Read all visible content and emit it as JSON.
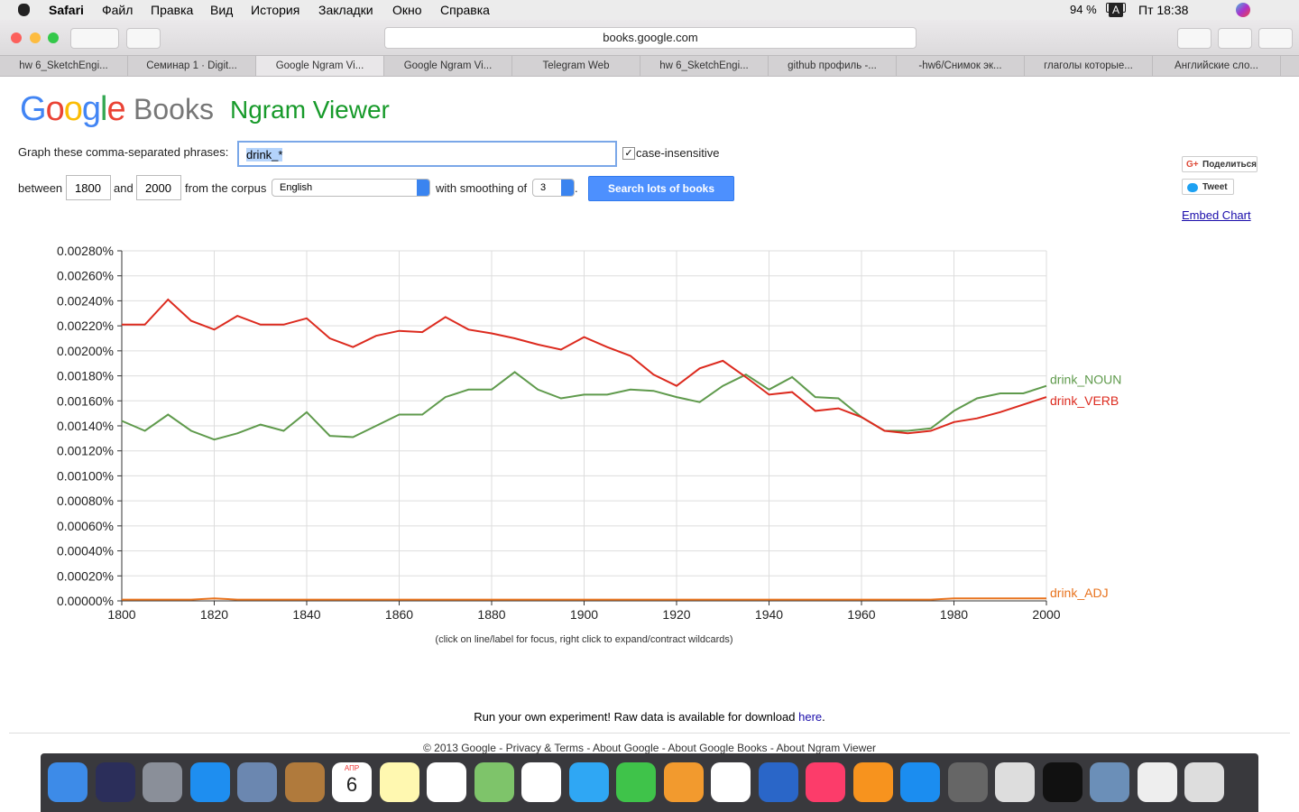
{
  "menubar": {
    "app": "Safari",
    "items": [
      "Файл",
      "Правка",
      "Вид",
      "История",
      "Закладки",
      "Окно",
      "Справка"
    ],
    "battery": "94 %",
    "input": "A",
    "clock": "Пт 18:38"
  },
  "browser": {
    "url": "books.google.com",
    "tabs": [
      "hw 6_SketchEngi...",
      "Семинар 1 · Digit...",
      "Google Ngram Vi...",
      "Google Ngram Vi...",
      "Telegram Web",
      "hw 6_SketchEngi...",
      "github профиль -...",
      "-hw6/Снимок эк...",
      "глаголы которые...",
      "Английские сло..."
    ]
  },
  "page": {
    "logo_google": "Google",
    "logo_books": "Books",
    "logo_ngram": "Ngram Viewer",
    "phrases_label": "Graph these comma-separated phrases:",
    "phrases_value": "drink_*",
    "case_insensitive": "case-insensitive",
    "between": "between",
    "start_year": "1800",
    "and": "and",
    "end_year": "2000",
    "from_corpus": "from the corpus",
    "corpus": "English",
    "smoothing_label": "with smoothing of",
    "smoothing": "3",
    "period": ".",
    "search_button": "Search lots of books",
    "share": "Поделиться",
    "tweet": "Tweet",
    "embed": "Embed Chart",
    "hint": "(click on line/label for focus, right click to expand/contract wildcards)",
    "run_text": "Run your own experiment! Raw data is available for download",
    "here": "here",
    "run_end": ".",
    "footer": "© 2013 Google - Privacy & Terms - About Google - About Google Books - About Ngram Viewer"
  },
  "dock": {
    "calendar_month": "АПР",
    "calendar_day": "6"
  },
  "chart_data": {
    "type": "line",
    "x": [
      1800,
      1805,
      1810,
      1815,
      1820,
      1825,
      1830,
      1835,
      1840,
      1845,
      1850,
      1855,
      1860,
      1865,
      1870,
      1875,
      1880,
      1885,
      1890,
      1895,
      1900,
      1905,
      1910,
      1915,
      1920,
      1925,
      1930,
      1935,
      1940,
      1945,
      1950,
      1955,
      1960,
      1965,
      1970,
      1975,
      1980,
      1985,
      1990,
      1995,
      2000
    ],
    "series": [
      {
        "name": "drink_NOUN",
        "color": "#5f9a4c",
        "values": [
          0.00144,
          0.00136,
          0.00149,
          0.00136,
          0.00129,
          0.00134,
          0.00141,
          0.00136,
          0.00151,
          0.00132,
          0.00131,
          0.0014,
          0.00149,
          0.00149,
          0.00163,
          0.00169,
          0.00169,
          0.00183,
          0.00169,
          0.00162,
          0.00165,
          0.00165,
          0.00169,
          0.00168,
          0.00163,
          0.00159,
          0.00172,
          0.00181,
          0.00169,
          0.00179,
          0.00163,
          0.00162,
          0.00147,
          0.00136,
          0.00136,
          0.00138,
          0.00152,
          0.00162,
          0.00166,
          0.00166,
          0.00172
        ]
      },
      {
        "name": "drink_VERB",
        "color": "#dc2a1e",
        "values": [
          0.00221,
          0.00221,
          0.00241,
          0.00224,
          0.00217,
          0.00228,
          0.00221,
          0.00221,
          0.00226,
          0.0021,
          0.00203,
          0.00212,
          0.00216,
          0.00215,
          0.00227,
          0.00217,
          0.00214,
          0.0021,
          0.00205,
          0.00201,
          0.00211,
          0.00203,
          0.00196,
          0.00181,
          0.00172,
          0.00186,
          0.00192,
          0.00179,
          0.00165,
          0.00167,
          0.00152,
          0.00154,
          0.00147,
          0.00136,
          0.00134,
          0.00136,
          0.00143,
          0.00146,
          0.00151,
          0.00157,
          0.00163
        ]
      },
      {
        "name": "drink_ADJ",
        "color": "#e8731e",
        "values": [
          1e-05,
          1e-05,
          1e-05,
          1e-05,
          2e-05,
          1e-05,
          1e-05,
          1e-05,
          1e-05,
          1e-05,
          1e-05,
          1e-05,
          1e-05,
          1e-05,
          1e-05,
          1e-05,
          1e-05,
          1e-05,
          1e-05,
          1e-05,
          1e-05,
          1e-05,
          1e-05,
          1e-05,
          1e-05,
          1e-05,
          1e-05,
          1e-05,
          1e-05,
          1e-05,
          1e-05,
          1e-05,
          1e-05,
          1e-05,
          1e-05,
          1e-05,
          2e-05,
          2e-05,
          2e-05,
          2e-05,
          2e-05
        ]
      }
    ],
    "xlim": [
      1800,
      2000
    ],
    "xticks": [
      1800,
      1820,
      1840,
      1860,
      1880,
      1900,
      1920,
      1940,
      1960,
      1980,
      2000
    ],
    "ylim": [
      0,
      0.0028
    ],
    "yticks": [
      {
        "value": 0,
        "label": "0.00000%"
      },
      {
        "value": 0.0002,
        "label": "0.00020%"
      },
      {
        "value": 0.0004,
        "label": "0.00040%"
      },
      {
        "value": 0.0006,
        "label": "0.00060%"
      },
      {
        "value": 0.0008,
        "label": "0.00080%"
      },
      {
        "value": 0.001,
        "label": "0.00100%"
      },
      {
        "value": 0.0012,
        "label": "0.00120%"
      },
      {
        "value": 0.0014,
        "label": "0.00140%"
      },
      {
        "value": 0.0016,
        "label": "0.00160%"
      },
      {
        "value": 0.0018,
        "label": "0.00180%"
      },
      {
        "value": 0.002,
        "label": "0.00200%"
      },
      {
        "value": 0.0022,
        "label": "0.00220%"
      },
      {
        "value": 0.0024,
        "label": "0.00240%"
      },
      {
        "value": 0.0026,
        "label": "0.00260%"
      },
      {
        "value": 0.0028,
        "label": "0.00280%"
      }
    ],
    "grid": true
  }
}
